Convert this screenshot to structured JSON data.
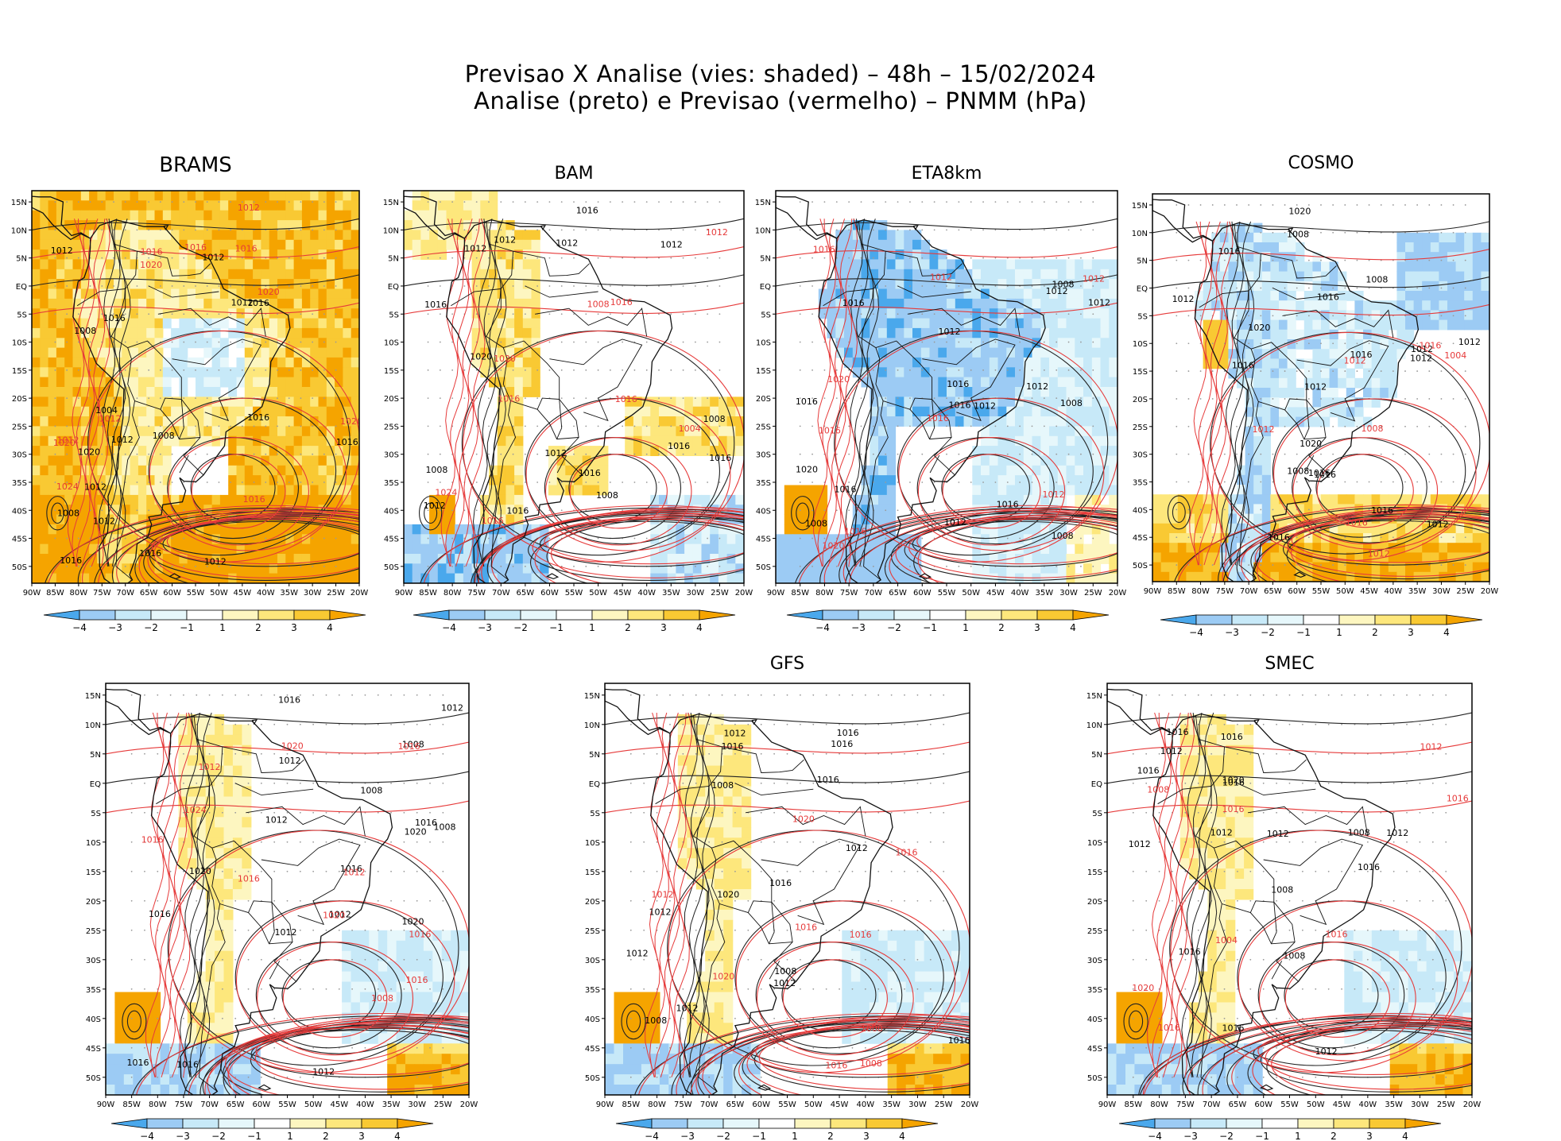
{
  "title": {
    "line1": "Previsao X Analise (vies: shaded) – 48h – 15/02/2024",
    "line2": "Analise (preto) e Previsao (vermelho) – PNMM (hPa)"
  },
  "colors": {
    "neg4": "#4aa8ec",
    "neg3": "#9ccbf4",
    "neg2": "#c7e9f8",
    "neg1": "#e6f7fb",
    "zero": "#ffffff",
    "pos1": "#fdf6c0",
    "pos2": "#fde77c",
    "pos3": "#f9c933",
    "pos4": "#f5a400",
    "analysis_contour": "#222222",
    "forecast_contour": "#e63a3a",
    "coast": "#111111",
    "grid": "#9a9a9a"
  },
  "axis": {
    "lon_ticks": [
      "90W",
      "85W",
      "80W",
      "75W",
      "70W",
      "65W",
      "60W",
      "55W",
      "50W",
      "45W",
      "40W",
      "35W",
      "30W",
      "25W",
      "20W"
    ],
    "lat_ticks": [
      "15N",
      "10N",
      "5N",
      "EQ",
      "5S",
      "10S",
      "15S",
      "20S",
      "25S",
      "30S",
      "35S",
      "40S",
      "45S",
      "50S"
    ]
  },
  "colorbar": {
    "labels": [
      "−4",
      "−3",
      "−2",
      "−1",
      "1",
      "2",
      "3",
      "4"
    ]
  },
  "panels": [
    {
      "name": "BRAMS",
      "title": "BRAMS",
      "bias": "warm",
      "labels_analysis": [
        "1012",
        "1016",
        "1008",
        "1012",
        "1016",
        "1012",
        "1016",
        "1012",
        "1016",
        "1012",
        "1012",
        "1008",
        "1004",
        "1008",
        "1016",
        "1020",
        "1012",
        "1016"
      ],
      "labels_forecast": [
        "1020",
        "1016",
        "1012",
        "1012",
        "1012",
        "1016",
        "1020",
        "1024",
        "1020",
        "1016",
        "1016",
        "1020"
      ]
    },
    {
      "name": "BAM",
      "title": "BAM",
      "bias": "mixed-warm",
      "labels_analysis": [
        "1012",
        "1016",
        "1016",
        "1012",
        "1012",
        "1016",
        "1012",
        "1016",
        "1012",
        "1016",
        "1008",
        "1008",
        "1020",
        "1016",
        "1012",
        "1008"
      ],
      "labels_forecast": [
        "1016",
        "1016",
        "1012",
        "1016",
        "1020",
        "1024",
        "1016",
        "1004",
        "1008"
      ]
    },
    {
      "name": "ETA8km",
      "title": "ETA8km",
      "bias": "cool",
      "labels_analysis": [
        "1016",
        "1012",
        "1008",
        "1008",
        "1012",
        "1016",
        "1012",
        "1016",
        "1016",
        "1012",
        "1020",
        "1016",
        "1016",
        "1012",
        "1008",
        "1012",
        "1008"
      ],
      "labels_forecast": [
        "1012",
        "1016",
        "1016",
        "1012",
        "1016",
        "1020",
        "1016",
        "1020",
        "1012"
      ]
    },
    {
      "name": "COSMO",
      "title": "COSMO",
      "bias": "cool-coast",
      "labels_analysis": [
        "1012",
        "1008",
        "1012",
        "1016",
        "1012",
        "1016",
        "1020",
        "1016",
        "1012",
        "1016",
        "1020",
        "1016",
        "1016",
        "1016",
        "1020",
        "1016",
        "1012",
        "1008",
        "1008",
        "1012"
      ],
      "labels_forecast": [
        "1012",
        "1016",
        "1012",
        "1012",
        "1008",
        "1004",
        "1016"
      ]
    },
    {
      "name": "BRAMS-2",
      "title": "",
      "bias": "mixed",
      "labels_analysis": [
        "1016",
        "1012",
        "1008",
        "1016",
        "1012",
        "1016",
        "1020",
        "1016",
        "1012",
        "1012",
        "1020",
        "1012",
        "1016",
        "1020",
        "1016",
        "1012",
        "1008",
        "1008"
      ],
      "labels_forecast": [
        "1020",
        "1016",
        "1016",
        "1012",
        "1016",
        "1020",
        "1024",
        "1016",
        "1012",
        "1016",
        "1008"
      ]
    },
    {
      "name": "GFS",
      "title": "GFS",
      "bias": "mixed",
      "labels_analysis": [
        "1012",
        "1016",
        "1016",
        "1012",
        "1008",
        "1012",
        "1016",
        "1016",
        "1012",
        "1016",
        "1020",
        "1016",
        "1012",
        "1008",
        "1012",
        "1008"
      ],
      "labels_forecast": [
        "1020",
        "1016",
        "1016",
        "1008",
        "1012",
        "1016",
        "1020",
        "1016",
        "1008"
      ]
    },
    {
      "name": "SMEC",
      "title": "SMEC",
      "bias": "mixed",
      "labels_analysis": [
        "1012",
        "1016",
        "1012",
        "1016",
        "1016",
        "1008",
        "1012",
        "1016",
        "1016",
        "1012",
        "1016",
        "1020",
        "1016",
        "1012",
        "1008",
        "1012",
        "1008"
      ],
      "labels_forecast": [
        "1016",
        "1008",
        "1016",
        "1016",
        "1020",
        "1016",
        "1012",
        "1004"
      ]
    }
  ]
}
